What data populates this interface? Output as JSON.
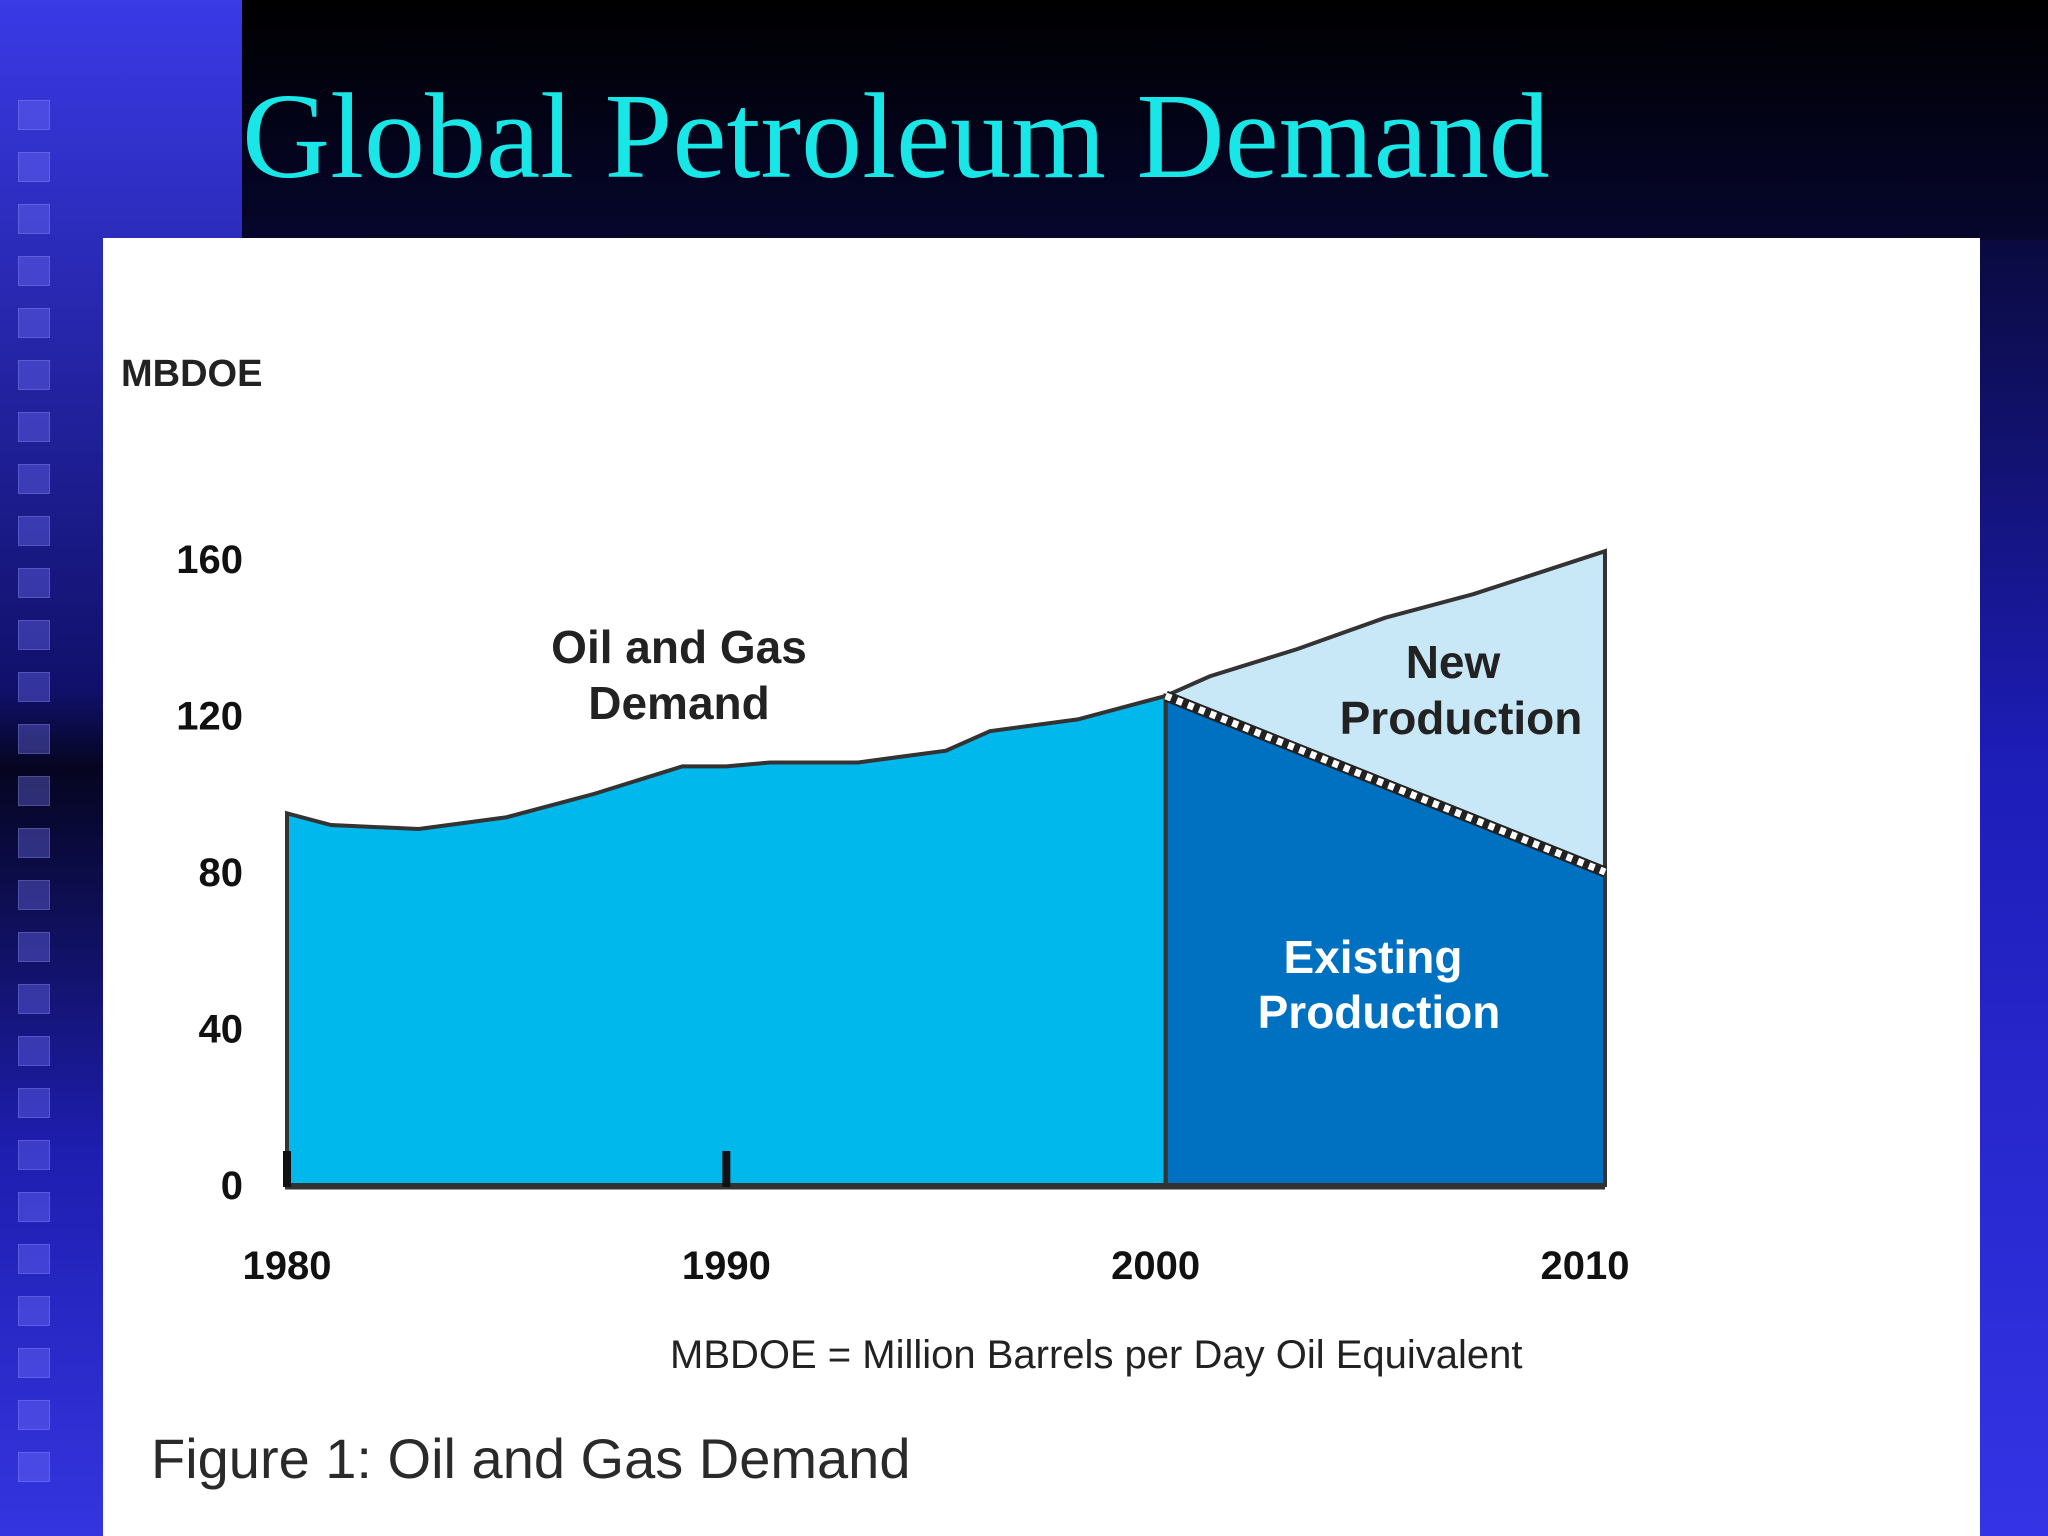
{
  "slide": {
    "title": "Global Petroleum Demand",
    "title_color": "#19e6e6"
  },
  "figure": {
    "caption": "Figure 1: Oil and Gas Demand",
    "footnote": "MBDOE = Million Barrels per Day Oil Equivalent"
  },
  "chart_data": {
    "type": "area",
    "title": "",
    "ylabel": "MBDOE",
    "xlabel": "",
    "xlim": [
      1980,
      2010
    ],
    "ylim": [
      0,
      160
    ],
    "x_ticks": [
      1980,
      1990,
      2000,
      2010
    ],
    "y_ticks": [
      0,
      40,
      80,
      120,
      160
    ],
    "grid": false,
    "colors": {
      "demand": "#00b8ec",
      "existing": "#0070c0",
      "new": "#c8e8f8",
      "outline": "#333333"
    },
    "series": [
      {
        "name": "Oil and Gas Demand",
        "label_lines": [
          "Oil and Gas",
          "Demand"
        ],
        "x": [
          1980,
          1981,
          1983,
          1985,
          1987,
          1989,
          1990,
          1991,
          1993,
          1995,
          1996,
          1998,
          2000
        ],
        "y": [
          95,
          92,
          91,
          94,
          100,
          107,
          107,
          108,
          108,
          111,
          116,
          119,
          125
        ]
      },
      {
        "name": "Existing Production",
        "label_lines": [
          "Existing",
          "Production"
        ],
        "x": [
          2000,
          2005,
          2010
        ],
        "y": [
          125,
          103,
          80
        ]
      },
      {
        "name": "New Production",
        "label_lines": [
          "New",
          "Production"
        ],
        "x": [
          2000,
          2001,
          2003,
          2005,
          2007,
          2010
        ],
        "y": [
          125,
          130,
          137,
          145,
          151,
          162
        ]
      }
    ]
  }
}
